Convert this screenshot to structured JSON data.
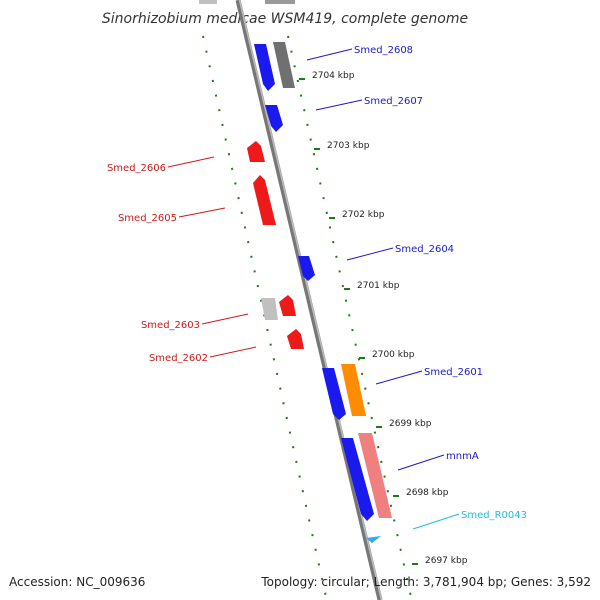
{
  "title": "Sinorhizobium medicae WSM419, complete genome",
  "footer": {
    "accession": "Accession: NC_009636",
    "summary": "Topology: circular; Length: 3,781,904 bp; Genes: 3,592"
  },
  "colors": {
    "backbone": "#7a7a7a",
    "tick": "#1a7a1a",
    "plus_label": "#1a1acc",
    "minus_label": "#cc1a1a",
    "rna_label": "#22bbdd",
    "blue_gene": "#1a1aee",
    "red_gene": "#ee1a1a",
    "gray_gene": "#707070",
    "orange_gene": "#ff8c00",
    "pink_gene": "#f08080",
    "lightgray_gene": "#c0c0c0",
    "trna_mark": "#33aaee"
  },
  "scale_labels": [
    {
      "text": "2704 kbp",
      "kbp": 2704
    },
    {
      "text": "2703 kbp",
      "kbp": 2703
    },
    {
      "text": "2702 kbp",
      "kbp": 2702
    },
    {
      "text": "2701 kbp",
      "kbp": 2701
    },
    {
      "text": "2700 kbp",
      "kbp": 2700
    },
    {
      "text": "2699 kbp",
      "kbp": 2699
    },
    {
      "text": "2698 kbp",
      "kbp": 2698
    },
    {
      "text": "2697 kbp",
      "kbp": 2697
    }
  ],
  "gene_labels": [
    {
      "text": "Smed_2608",
      "strand": "plus"
    },
    {
      "text": "Smed_2607",
      "strand": "plus"
    },
    {
      "text": "Smed_2606",
      "strand": "minus"
    },
    {
      "text": "Smed_2605",
      "strand": "minus"
    },
    {
      "text": "Smed_2604",
      "strand": "plus"
    },
    {
      "text": "Smed_2603",
      "strand": "minus"
    },
    {
      "text": "Smed_2602",
      "strand": "minus"
    },
    {
      "text": "Smed_2601",
      "strand": "plus"
    },
    {
      "text": "mnmA",
      "strand": "plus"
    },
    {
      "text": "Smed_R0043",
      "strand": "rna"
    }
  ]
}
